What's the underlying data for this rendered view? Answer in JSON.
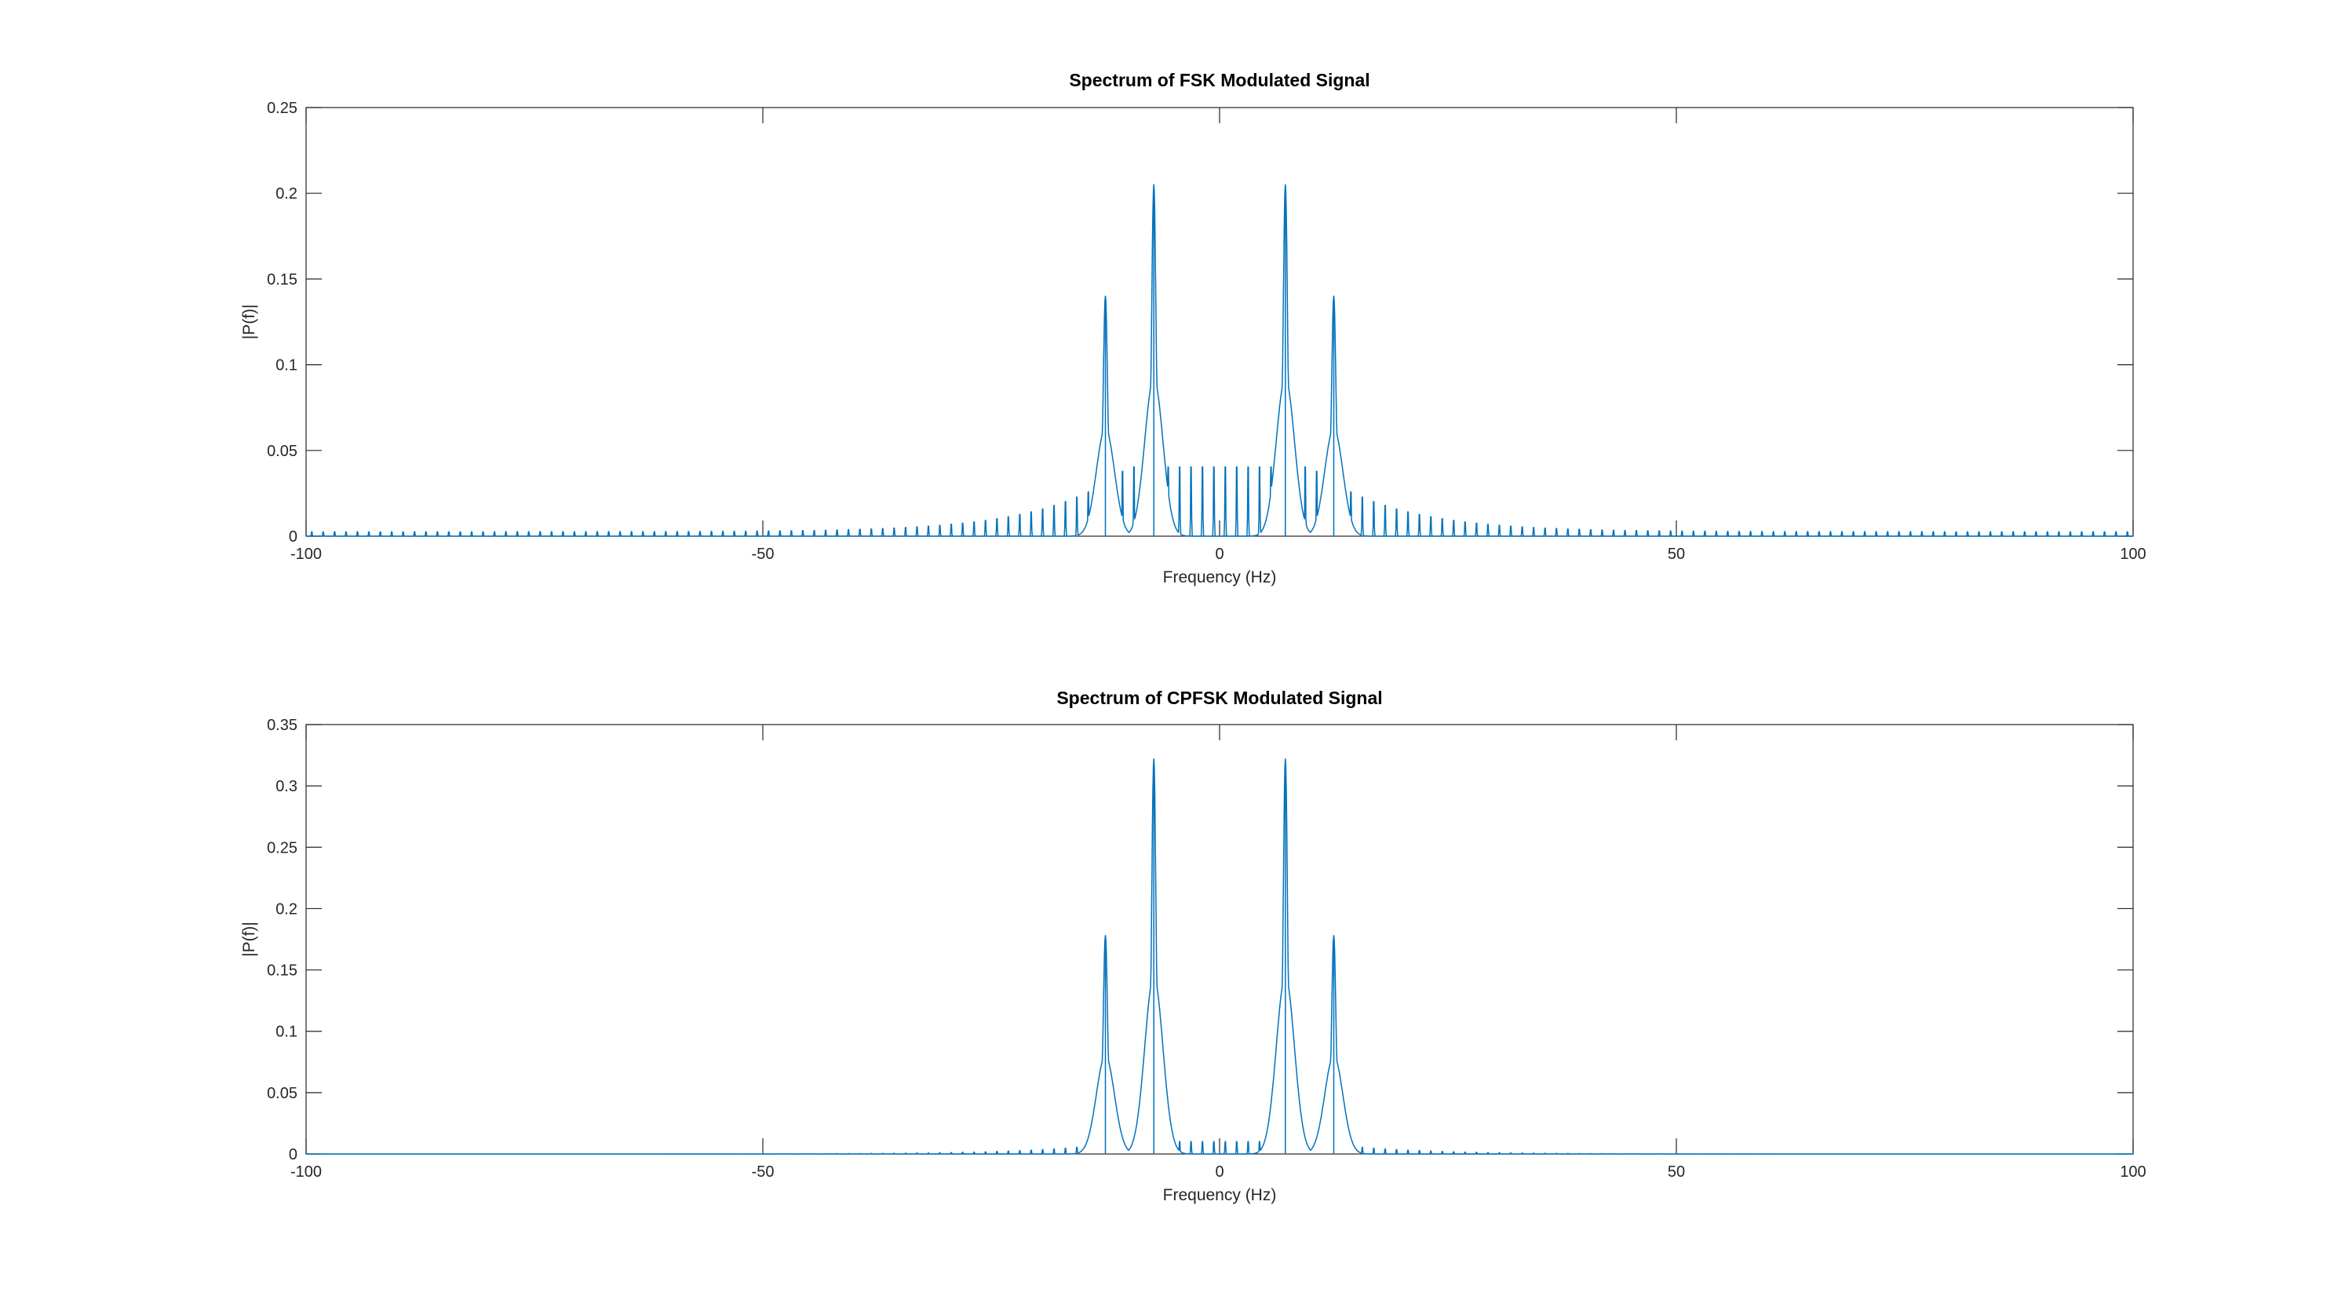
{
  "chart_data": [
    {
      "type": "line",
      "title": "Spectrum of FSK Modulated Signal",
      "xlabel": "Frequency (Hz)",
      "ylabel": "|P(f)|",
      "xlim": [
        -100,
        100
      ],
      "ylim": [
        0,
        0.25
      ],
      "xticks": [
        -100,
        -50,
        0,
        50,
        100
      ],
      "xtick_labels": [
        "-100",
        "-50",
        "0",
        "50",
        "100"
      ],
      "yticks": [
        0,
        0.05,
        0.1,
        0.15,
        0.2,
        0.25
      ],
      "ytick_labels": [
        "0",
        "0.05",
        "0.1",
        "0.15",
        "0.2",
        "0.25"
      ],
      "grid": false,
      "color": "#0072bd",
      "series": [
        {
          "name": "FSK spectrum",
          "description": "discontinuous-phase FSK: main lobes with slow sidelobe decay",
          "peaks": [
            {
              "f": -12.5,
              "value": 0.14
            },
            {
              "f": -7.2,
              "value": 0.205
            },
            {
              "f": 7.2,
              "value": 0.205
            },
            {
              "f": 12.5,
              "value": 0.14
            }
          ],
          "sidelobe_spacing_hz": 1.25,
          "sidelobe_floor": 0.003,
          "sidelobe_peak_near_center": 0.045
        }
      ]
    },
    {
      "type": "line",
      "title": "Spectrum of CPFSK Modulated Signal",
      "xlabel": "Frequency (Hz)",
      "ylabel": "|P(f)|",
      "xlim": [
        -100,
        100
      ],
      "ylim": [
        0,
        0.35
      ],
      "xticks": [
        -100,
        -50,
        0,
        50,
        100
      ],
      "xtick_labels": [
        "-100",
        "-50",
        "0",
        "50",
        "100"
      ],
      "yticks": [
        0,
        0.05,
        0.1,
        0.15,
        0.2,
        0.25,
        0.3,
        0.35
      ],
      "ytick_labels": [
        "0",
        "0.05",
        "0.1",
        "0.15",
        "0.2",
        "0.25",
        "0.3",
        "0.35"
      ],
      "grid": false,
      "color": "#0072bd",
      "series": [
        {
          "name": "CPFSK spectrum",
          "description": "continuous-phase FSK: compact spectrum, fast sidelobe decay",
          "peaks": [
            {
              "f": -12.5,
              "value": 0.178
            },
            {
              "f": -7.2,
              "value": 0.322
            },
            {
              "f": 7.2,
              "value": 0.322
            },
            {
              "f": 12.5,
              "value": 0.178
            }
          ],
          "sidelobe_spacing_hz": 1.25,
          "sidelobe_floor": 0.0,
          "sidelobe_peak_near_center": 0.012
        }
      ]
    }
  ]
}
